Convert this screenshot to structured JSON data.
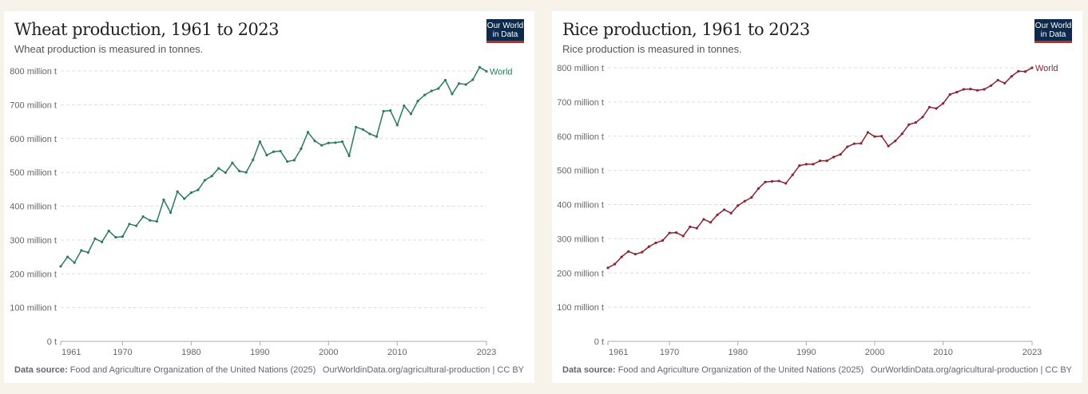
{
  "chart_data": [
    {
      "type": "line",
      "title": "Wheat production, 1961 to 2023",
      "subtitle": "Wheat production is measured in tonnes.",
      "unit": "million t",
      "color": "#2a7c5a",
      "series_name": "World",
      "x_start": 1961,
      "x_ticks": [
        "1961",
        "1970",
        "1980",
        "1990",
        "2000",
        "2010",
        "2023"
      ],
      "y_ticks": [
        "0 t",
        "100 million t",
        "200 million t",
        "300 million t",
        "400 million t",
        "500 million t",
        "600 million t",
        "700 million t",
        "800 million t"
      ],
      "ylim": [
        0,
        800
      ],
      "xlim": [
        1961,
        2023
      ],
      "values": [
        222,
        250,
        233,
        269,
        263,
        304,
        294,
        327,
        308,
        310,
        347,
        342,
        369,
        358,
        355,
        419,
        381,
        443,
        422,
        440,
        448,
        477,
        489,
        512,
        499,
        528,
        504,
        500,
        537,
        591,
        551,
        561,
        563,
        532,
        536,
        570,
        619,
        593,
        580,
        587,
        588,
        591,
        549,
        634,
        627,
        614,
        606,
        681,
        683,
        640,
        697,
        673,
        711,
        729,
        741,
        748,
        773,
        732,
        763,
        760,
        774,
        811,
        799
      ],
      "source_label": "Data source:",
      "source": "Food and Agriculture Organization of the United Nations (2025)",
      "url": "OurWorldinData.org/agricultural-production | CC BY"
    },
    {
      "type": "line",
      "title": "Rice production, 1961 to 2023",
      "subtitle": "Rice production is measured in tonnes.",
      "unit": "million t",
      "color": "#8c2332",
      "series_name": "World",
      "x_start": 1961,
      "x_ticks": [
        "1961",
        "1970",
        "1980",
        "1990",
        "2000",
        "2010",
        "2023"
      ],
      "y_ticks": [
        "0 t",
        "100 million t",
        "200 million t",
        "300 million t",
        "400 million t",
        "500 million t",
        "600 million t",
        "700 million t",
        "800 million t"
      ],
      "ylim": [
        0,
        800
      ],
      "xlim": [
        1961,
        2023
      ],
      "values": [
        215,
        226,
        247,
        263,
        255,
        261,
        277,
        288,
        295,
        317,
        318,
        308,
        335,
        331,
        357,
        348,
        370,
        385,
        375,
        397,
        410,
        421,
        447,
        466,
        468,
        469,
        462,
        487,
        514,
        518,
        518,
        528,
        528,
        539,
        547,
        569,
        578,
        579,
        611,
        599,
        600,
        571,
        586,
        607,
        634,
        640,
        656,
        685,
        681,
        696,
        722,
        729,
        737,
        738,
        734,
        737,
        748,
        764,
        755,
        775,
        790,
        789,
        800
      ],
      "source_label": "Data source:",
      "source": "Food and Agriculture Organization of the United Nations (2025)",
      "url": "OurWorldinData.org/agricultural-production | CC BY"
    }
  ],
  "logo": {
    "line1": "Our World",
    "line2": "in Data"
  }
}
